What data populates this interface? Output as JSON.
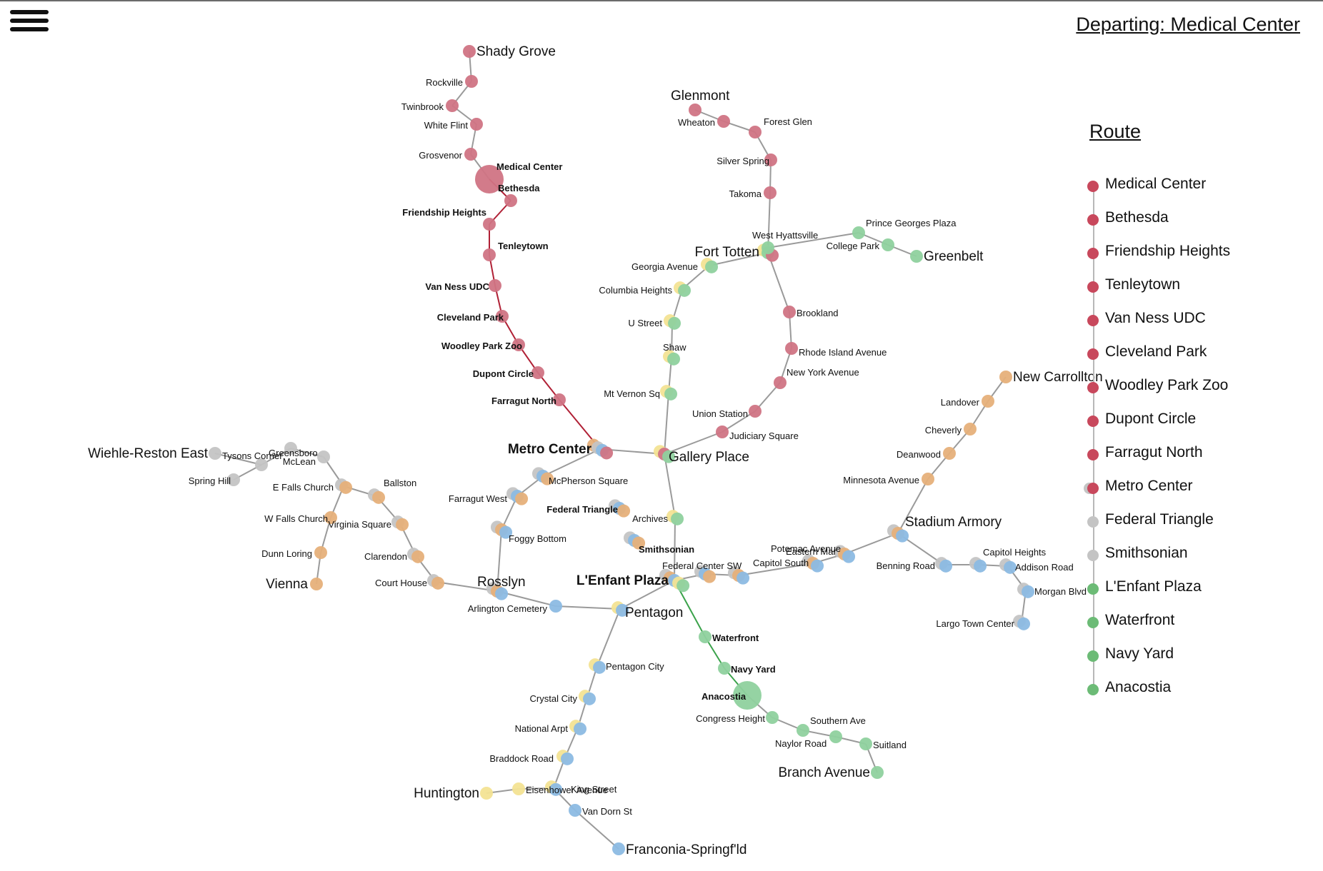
{
  "header": {
    "departing_label": "Departing: Medical Center",
    "route_title": "Route"
  },
  "colors": {
    "red": "#d07484",
    "red_route": "#c8485c",
    "red_path": "#b02035",
    "orange": "#e6b07a",
    "blue": "#8cbbe3",
    "green": "#8fd19e",
    "green_route": "#6cbb76",
    "green_path": "#3aa24a",
    "yellow": "#f3e393",
    "silver": "#c4c4c4",
    "track": "#9a9a9a"
  },
  "route": [
    {
      "name": "Medical Center",
      "color": "red"
    },
    {
      "name": "Bethesda",
      "color": "red"
    },
    {
      "name": "Friendship Heights",
      "color": "red"
    },
    {
      "name": "Tenleytown",
      "color": "red"
    },
    {
      "name": "Van Ness UDC",
      "color": "red"
    },
    {
      "name": "Cleveland Park",
      "color": "red"
    },
    {
      "name": "Woodley Park Zoo",
      "color": "red"
    },
    {
      "name": "Dupont Circle",
      "color": "red"
    },
    {
      "name": "Farragut North",
      "color": "red"
    },
    {
      "name": "Metro Center",
      "color": "red",
      "transfer": "silver"
    },
    {
      "name": "Federal Triangle",
      "color": "silver"
    },
    {
      "name": "Smithsonian",
      "color": "silver"
    },
    {
      "name": "L'Enfant Plaza",
      "color": "green"
    },
    {
      "name": "Waterfront",
      "color": "green"
    },
    {
      "name": "Navy Yard",
      "color": "green"
    },
    {
      "name": "Anacostia",
      "color": "green"
    }
  ],
  "map": {
    "stations": [
      {
        "id": "shady_grove",
        "name": "Shady Grove",
        "label_style": "terminal",
        "lines": [
          "red"
        ]
      },
      {
        "id": "rockville",
        "name": "Rockville",
        "lines": [
          "red"
        ]
      },
      {
        "id": "twinbrook",
        "name": "Twinbrook",
        "lines": [
          "red"
        ]
      },
      {
        "id": "white_flint",
        "name": "White Flint",
        "lines": [
          "red"
        ]
      },
      {
        "id": "grosvenor",
        "name": "Grosvenor",
        "lines": [
          "red"
        ]
      },
      {
        "id": "medical_center",
        "name": "Medical Center",
        "label_style": "route",
        "lines": [
          "red"
        ],
        "origin": true
      },
      {
        "id": "bethesda",
        "name": "Bethesda",
        "label_style": "route",
        "lines": [
          "red"
        ]
      },
      {
        "id": "friendship_heights",
        "name": "Friendship Heights",
        "label_style": "route",
        "lines": [
          "red"
        ]
      },
      {
        "id": "tenleytown",
        "name": "Tenleytown",
        "label_style": "route",
        "lines": [
          "red"
        ]
      },
      {
        "id": "van_ness",
        "name": "Van Ness UDC",
        "label_style": "route",
        "lines": [
          "red"
        ]
      },
      {
        "id": "cleveland_park",
        "name": "Cleveland Park",
        "label_style": "route",
        "lines": [
          "red"
        ]
      },
      {
        "id": "woodley_park",
        "name": "Woodley Park Zoo",
        "label_style": "route",
        "lines": [
          "red"
        ]
      },
      {
        "id": "dupont_circle",
        "name": "Dupont Circle",
        "label_style": "route",
        "lines": [
          "red"
        ]
      },
      {
        "id": "farragut_north",
        "name": "Farragut North",
        "label_style": "route",
        "lines": [
          "red"
        ]
      },
      {
        "id": "metro_center",
        "name": "Metro Center",
        "label_style": "route_hub",
        "lines": [
          "orange",
          "silver",
          "blue",
          "red"
        ]
      },
      {
        "id": "glenmont",
        "name": "Glenmont",
        "label_style": "terminal",
        "lines": [
          "red"
        ]
      },
      {
        "id": "wheaton",
        "name": "Wheaton",
        "lines": [
          "red"
        ]
      },
      {
        "id": "forest_glen",
        "name": "Forest Glen",
        "lines": [
          "red"
        ]
      },
      {
        "id": "silver_spring",
        "name": "Silver Spring",
        "lines": [
          "red"
        ]
      },
      {
        "id": "takoma",
        "name": "Takoma",
        "lines": [
          "red"
        ]
      },
      {
        "id": "fort_totten",
        "name": "Fort Totten",
        "label_style": "hub",
        "lines": [
          "yellow",
          "green",
          "red"
        ]
      },
      {
        "id": "brookland",
        "name": "Brookland",
        "lines": [
          "red"
        ]
      },
      {
        "id": "rhode_island",
        "name": "Rhode Island Avenue",
        "lines": [
          "red"
        ]
      },
      {
        "id": "new_york_ave",
        "name": "New York Avenue",
        "lines": [
          "red"
        ]
      },
      {
        "id": "union_station",
        "name": "Union Station",
        "lines": [
          "red"
        ]
      },
      {
        "id": "judiciary_square",
        "name": "Judiciary Square",
        "lines": [
          "red"
        ]
      },
      {
        "id": "gallery_place",
        "name": "Gallery Place",
        "label_style": "hub",
        "lines": [
          "yellow",
          "red",
          "green"
        ]
      },
      {
        "id": "west_hyattsville",
        "name": "West Hyattsville",
        "lines": [
          "green"
        ]
      },
      {
        "id": "prince_georges",
        "name": "Prince Georges Plaza",
        "lines": [
          "green"
        ]
      },
      {
        "id": "college_park",
        "name": "College Park",
        "lines": [
          "green"
        ]
      },
      {
        "id": "greenbelt",
        "name": "Greenbelt",
        "label_style": "terminal",
        "lines": [
          "green"
        ]
      },
      {
        "id": "georgia_ave",
        "name": "Georgia Avenue",
        "lines": [
          "yellow",
          "green"
        ]
      },
      {
        "id": "columbia_heights",
        "name": "Columbia Heights",
        "lines": [
          "yellow",
          "green"
        ]
      },
      {
        "id": "u_street",
        "name": "U Street",
        "lines": [
          "yellow",
          "green"
        ]
      },
      {
        "id": "shaw",
        "name": "Shaw",
        "lines": [
          "yellow",
          "green"
        ]
      },
      {
        "id": "mt_vernon",
        "name": "Mt Vernon Sq",
        "lines": [
          "yellow",
          "green"
        ]
      },
      {
        "id": "archives",
        "name": "Archives",
        "lines": [
          "yellow",
          "green"
        ]
      },
      {
        "id": "lenfant_plaza",
        "name": "L'Enfant Plaza",
        "label_style": "route_hub",
        "lines": [
          "silver",
          "orange",
          "blue",
          "yellow",
          "green"
        ]
      },
      {
        "id": "waterfront",
        "name": "Waterfront",
        "label_style": "route",
        "lines": [
          "green"
        ]
      },
      {
        "id": "navy_yard",
        "name": "Navy Yard",
        "label_style": "route",
        "lines": [
          "green"
        ]
      },
      {
        "id": "anacostia",
        "name": "Anacostia",
        "label_style": "route",
        "lines": [
          "green"
        ],
        "destination": true
      },
      {
        "id": "congress_heights",
        "name": "Congress Height",
        "lines": [
          "green"
        ]
      },
      {
        "id": "southern_ave",
        "name": "Southern Ave",
        "lines": [
          "green"
        ]
      },
      {
        "id": "naylor_road",
        "name": "Naylor Road",
        "lines": [
          "green"
        ]
      },
      {
        "id": "suitland",
        "name": "Suitland",
        "lines": [
          "green"
        ]
      },
      {
        "id": "branch_ave",
        "name": "Branch Avenue",
        "label_style": "terminal",
        "lines": [
          "green"
        ]
      },
      {
        "id": "mcpherson_sq",
        "name": "McPherson Square",
        "lines": [
          "silver",
          "blue",
          "orange"
        ]
      },
      {
        "id": "farragut_west",
        "name": "Farragut West",
        "lines": [
          "silver",
          "blue",
          "orange"
        ]
      },
      {
        "id": "foggy_bottom",
        "name": "Foggy Bottom",
        "lines": [
          "silver",
          "orange",
          "blue"
        ]
      },
      {
        "id": "federal_triangle",
        "name": "Federal Triangle",
        "label_style": "route",
        "lines": [
          "silver",
          "blue",
          "orange"
        ]
      },
      {
        "id": "smithsonian",
        "name": "Smithsonian",
        "label_style": "route",
        "lines": [
          "silver",
          "blue",
          "orange"
        ]
      },
      {
        "id": "rosslyn",
        "name": "Rosslyn",
        "label_style": "hub",
        "lines": [
          "silver",
          "orange",
          "blue"
        ]
      },
      {
        "id": "arlington_cemetery",
        "name": "Arlington Cemetery",
        "lines": [
          "blue"
        ]
      },
      {
        "id": "pentagon",
        "name": "Pentagon",
        "label_style": "hub",
        "lines": [
          "yellow",
          "blue"
        ]
      },
      {
        "id": "pentagon_city",
        "name": "Pentagon City",
        "lines": [
          "yellow",
          "blue"
        ]
      },
      {
        "id": "crystal_city",
        "name": "Crystal City",
        "lines": [
          "yellow",
          "blue"
        ]
      },
      {
        "id": "national_arpt",
        "name": "National Arpt",
        "lines": [
          "yellow",
          "blue"
        ]
      },
      {
        "id": "braddock_road",
        "name": "Braddock Road",
        "lines": [
          "yellow",
          "blue"
        ]
      },
      {
        "id": "king_street",
        "name": "King Street",
        "lines": [
          "yellow",
          "blue"
        ]
      },
      {
        "id": "eisenhower",
        "name": "Eisenhower Avenue",
        "lines": [
          "yellow"
        ]
      },
      {
        "id": "huntington",
        "name": "Huntington",
        "label_style": "terminal",
        "lines": [
          "yellow"
        ]
      },
      {
        "id": "van_dorn",
        "name": "Van Dorn St",
        "lines": [
          "blue"
        ]
      },
      {
        "id": "franconia",
        "name": "Franconia-Springf'ld",
        "label_style": "terminal",
        "lines": [
          "blue"
        ]
      },
      {
        "id": "federal_center_sw",
        "name": "Federal Center SW",
        "lines": [
          "silver",
          "blue",
          "orange"
        ]
      },
      {
        "id": "capitol_south",
        "name": "Capitol South",
        "lines": [
          "silver",
          "orange",
          "blue"
        ]
      },
      {
        "id": "eastern_market",
        "name": "Eastern Mar",
        "lines": [
          "silver",
          "orange",
          "blue"
        ]
      },
      {
        "id": "potomac_ave",
        "name": "Potomac Avenue",
        "lines": [
          "silver",
          "orange",
          "blue"
        ]
      },
      {
        "id": "stadium_armory",
        "name": "Stadium Armory",
        "label_style": "hub",
        "lines": [
          "silver",
          "orange",
          "blue"
        ]
      },
      {
        "id": "minnesota_ave",
        "name": "Minnesota Avenue",
        "lines": [
          "orange"
        ]
      },
      {
        "id": "deanwood",
        "name": "Deanwood",
        "lines": [
          "orange"
        ]
      },
      {
        "id": "cheverly",
        "name": "Cheverly",
        "lines": [
          "orange"
        ]
      },
      {
        "id": "landover",
        "name": "Landover",
        "lines": [
          "orange"
        ]
      },
      {
        "id": "new_carrollton",
        "name": "New Carrollton",
        "label_style": "terminal",
        "lines": [
          "orange"
        ]
      },
      {
        "id": "benning_road",
        "name": "Benning Road",
        "lines": [
          "silver",
          "blue"
        ]
      },
      {
        "id": "capitol_heights",
        "name": "Capitol Heights",
        "lines": [
          "silver",
          "blue"
        ]
      },
      {
        "id": "addison_road",
        "name": "Addison Road",
        "lines": [
          "silver",
          "blue"
        ]
      },
      {
        "id": "morgan_blvd",
        "name": "Morgan Blvd",
        "lines": [
          "silver",
          "blue"
        ]
      },
      {
        "id": "largo",
        "name": "Largo Town Center",
        "lines": [
          "silver",
          "blue"
        ]
      },
      {
        "id": "court_house",
        "name": "Court House",
        "lines": [
          "silver",
          "orange"
        ]
      },
      {
        "id": "clarendon",
        "name": "Clarendon",
        "lines": [
          "silver",
          "orange"
        ]
      },
      {
        "id": "virginia_sq",
        "name": "Virginia Square",
        "lines": [
          "silver",
          "orange"
        ]
      },
      {
        "id": "ballston",
        "name": "Ballston",
        "lines": [
          "silver",
          "orange"
        ]
      },
      {
        "id": "e_falls_church",
        "name": "E Falls Church",
        "lines": [
          "silver",
          "orange"
        ]
      },
      {
        "id": "w_falls_church",
        "name": "W Falls Church",
        "lines": [
          "orange"
        ]
      },
      {
        "id": "dunn_loring",
        "name": "Dunn Loring",
        "lines": [
          "orange"
        ]
      },
      {
        "id": "vienna",
        "name": "Vienna",
        "label_style": "terminal",
        "lines": [
          "orange"
        ]
      },
      {
        "id": "mclean",
        "name": "McLean",
        "lines": [
          "silver"
        ]
      },
      {
        "id": "greensboro",
        "name": "Greensboro",
        "lines": [
          "silver"
        ]
      },
      {
        "id": "tysons_corner",
        "name": "Tysons Corner",
        "lines": [
          "silver"
        ]
      },
      {
        "id": "spring_hill",
        "name": "Spring Hill",
        "lines": [
          "silver"
        ]
      },
      {
        "id": "wiehle",
        "name": "Wiehle-Reston East",
        "label_style": "terminal",
        "lines": [
          "silver"
        ]
      }
    ]
  }
}
